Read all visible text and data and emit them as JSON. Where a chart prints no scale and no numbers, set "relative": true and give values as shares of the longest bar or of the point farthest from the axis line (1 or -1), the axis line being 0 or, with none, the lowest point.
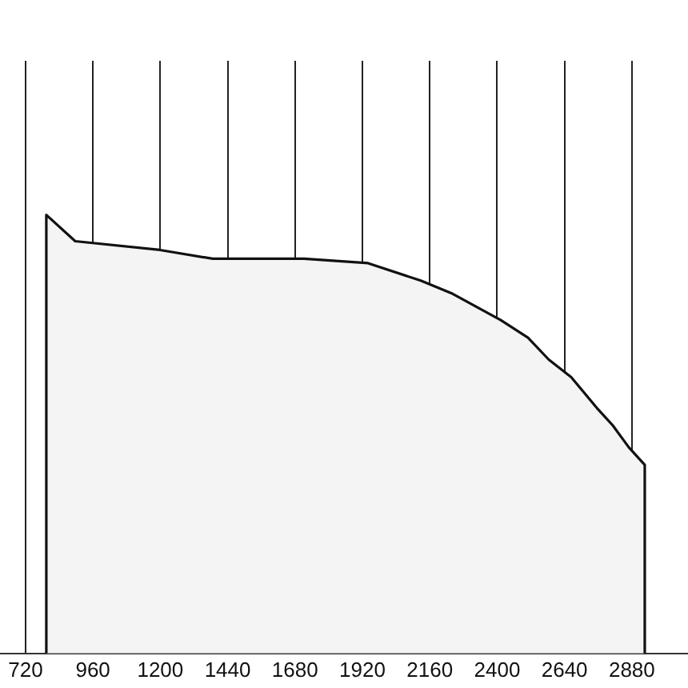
{
  "chart_data": {
    "type": "area",
    "relative": true,
    "grid": "x",
    "x": [
      794,
      794,
      897,
      1199,
      1387,
      1712,
      1940,
      2128,
      2242,
      2413,
      2510,
      2584,
      2664,
      2755,
      2812,
      2869,
      2926,
      2926
    ],
    "xlim": [
      629,
      3080
    ],
    "xticks": [
      720,
      960,
      1200,
      1440,
      1680,
      1920,
      2160,
      2400,
      2640,
      2880
    ],
    "series": [
      {
        "color": "#111111",
        "values": [
          0,
          1,
          0.94,
          0.92,
          0.9,
          0.9,
          0.89,
          0.85,
          0.82,
          0.76,
          0.72,
          0.67,
          0.63,
          0.56,
          0.52,
          0.47,
          0.43,
          0
        ]
      }
    ]
  }
}
